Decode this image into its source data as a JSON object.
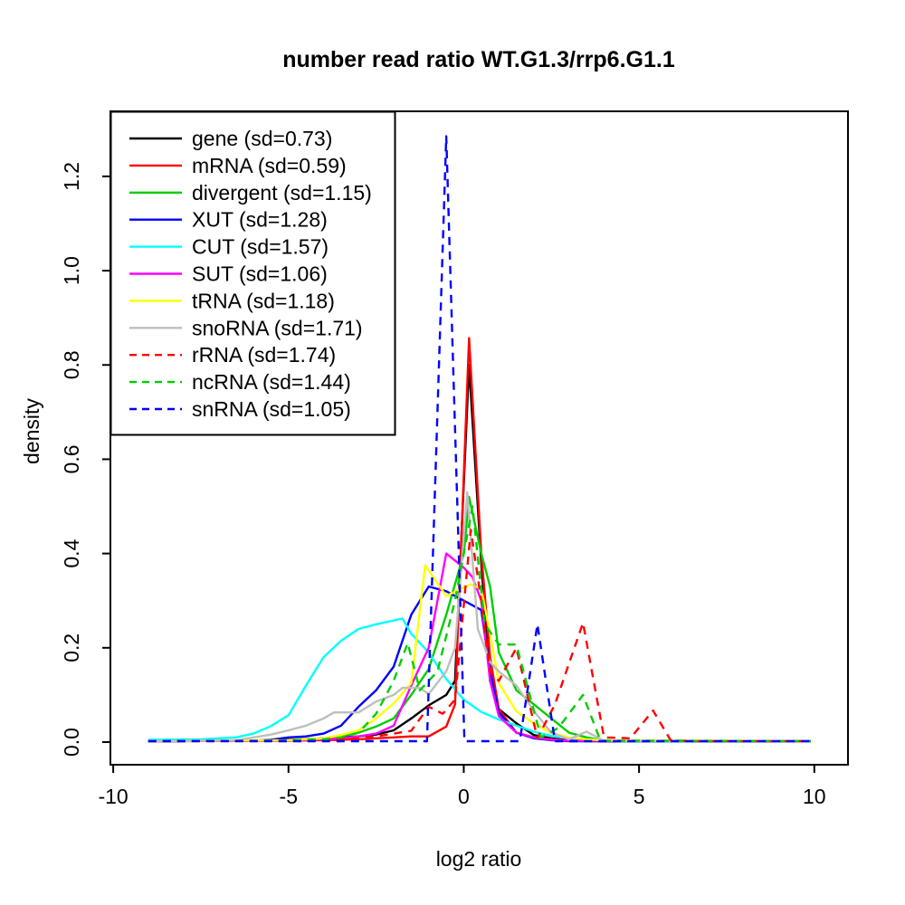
{
  "title": "number read ratio WT.G1.3/rrp6.G1.1",
  "axes": {
    "x_label": "log2 ratio",
    "y_label": "density",
    "x_ticks": [
      "-10",
      "-5",
      "0",
      "5",
      "10"
    ],
    "x_tick_values": [
      -10,
      -5,
      0,
      5,
      10
    ],
    "y_ticks": [
      "0.0",
      "0.2",
      "0.4",
      "0.6",
      "0.8",
      "1.0",
      "1.2"
    ],
    "y_tick_values": [
      0.0,
      0.2,
      0.4,
      0.6,
      0.8,
      1.0,
      1.2
    ]
  },
  "legend": {
    "entries": [
      {
        "label": "gene (sd=0.73)",
        "color": "#000000",
        "dash": false
      },
      {
        "label": "mRNA (sd=0.59)",
        "color": "#FF0000",
        "dash": false
      },
      {
        "label": "divergent (sd=1.15)",
        "color": "#00CD00",
        "dash": false
      },
      {
        "label": "XUT (sd=1.28)",
        "color": "#0000FF",
        "dash": false
      },
      {
        "label": "CUT (sd=1.57)",
        "color": "#00FFFF",
        "dash": false
      },
      {
        "label": "SUT (sd=1.06)",
        "color": "#FF00FF",
        "dash": false
      },
      {
        "label": "tRNA (sd=1.18)",
        "color": "#FFFF00",
        "dash": false
      },
      {
        "label": "snoRNA (sd=1.71)",
        "color": "#BEBEBE",
        "dash": false
      },
      {
        "label": "rRNA (sd=1.74)",
        "color": "#FF0000",
        "dash": true
      },
      {
        "label": "ncRNA (sd=1.44)",
        "color": "#00CD00",
        "dash": true
      },
      {
        "label": "snRNA (sd=1.05)",
        "color": "#0000FF",
        "dash": true
      }
    ]
  },
  "chart_data": {
    "type": "line",
    "title": "number read ratio WT.G1.3/rrp6.G1.1",
    "xlabel": "log2 ratio",
    "ylabel": "density",
    "x_range": [
      -10.08,
      10.96
    ],
    "y_range": [
      -0.048,
      1.338
    ],
    "grid": false,
    "legend_position": "top-left",
    "series": [
      {
        "name": "gene",
        "sd": 0.73,
        "color": "#000000",
        "dash": false,
        "points": [
          [
            -9,
            0.002
          ],
          [
            -6,
            0.003
          ],
          [
            -5,
            0.005
          ],
          [
            -4,
            0.008
          ],
          [
            -3,
            0.012
          ],
          [
            -2.5,
            0.016
          ],
          [
            -2,
            0.025
          ],
          [
            -1.5,
            0.05
          ],
          [
            -1,
            0.078
          ],
          [
            -0.5,
            0.1
          ],
          [
            -0.25,
            0.13
          ],
          [
            0.15,
            0.8
          ],
          [
            0.5,
            0.38
          ],
          [
            0.75,
            0.13
          ],
          [
            1,
            0.07
          ],
          [
            1.5,
            0.04
          ],
          [
            2,
            0.015
          ],
          [
            2.5,
            0.008
          ],
          [
            3,
            0.004
          ],
          [
            4,
            0.002
          ],
          [
            9.9,
            0.002
          ]
        ]
      },
      {
        "name": "mRNA",
        "sd": 0.59,
        "color": "#FF0000",
        "dash": false,
        "points": [
          [
            -9,
            0.002
          ],
          [
            -5,
            0.003
          ],
          [
            -4,
            0.004
          ],
          [
            -3,
            0.006
          ],
          [
            -2.5,
            0.008
          ],
          [
            -2,
            0.01
          ],
          [
            -1.5,
            0.012
          ],
          [
            -1,
            0.012
          ],
          [
            -0.5,
            0.033
          ],
          [
            -0.25,
            0.08
          ],
          [
            0.15,
            0.857
          ],
          [
            0.5,
            0.4
          ],
          [
            0.75,
            0.18
          ],
          [
            1,
            0.07
          ],
          [
            1.5,
            0.02
          ],
          [
            2,
            0.01
          ],
          [
            2.5,
            0.006
          ],
          [
            3,
            0.003
          ],
          [
            4,
            0.002
          ],
          [
            9.9,
            0.002
          ]
        ]
      },
      {
        "name": "divergent",
        "sd": 1.15,
        "color": "#00CD00",
        "dash": false,
        "points": [
          [
            -9,
            0.002
          ],
          [
            -5,
            0.004
          ],
          [
            -4,
            0.008
          ],
          [
            -3.5,
            0.012
          ],
          [
            -3,
            0.02
          ],
          [
            -2.5,
            0.033
          ],
          [
            -2,
            0.05
          ],
          [
            -1.5,
            0.1
          ],
          [
            -1,
            0.155
          ],
          [
            -0.5,
            0.27
          ],
          [
            0,
            0.4
          ],
          [
            0.15,
            0.52
          ],
          [
            0.5,
            0.4
          ],
          [
            0.75,
            0.33
          ],
          [
            1,
            0.19
          ],
          [
            1.5,
            0.11
          ],
          [
            2,
            0.08
          ],
          [
            2.5,
            0.05
          ],
          [
            3,
            0.02
          ],
          [
            3.5,
            0.01
          ],
          [
            4,
            0.003
          ],
          [
            9.9,
            0.002
          ]
        ]
      },
      {
        "name": "XUT",
        "sd": 1.28,
        "color": "#0000FF",
        "dash": false,
        "points": [
          [
            -9,
            0.002
          ],
          [
            -6,
            0.003
          ],
          [
            -5.5,
            0.005
          ],
          [
            -5,
            0.01
          ],
          [
            -4.5,
            0.012
          ],
          [
            -4,
            0.018
          ],
          [
            -3.5,
            0.035
          ],
          [
            -3,
            0.075
          ],
          [
            -2.5,
            0.11
          ],
          [
            -2,
            0.16
          ],
          [
            -1.5,
            0.27
          ],
          [
            -1,
            0.33
          ],
          [
            -0.5,
            0.32
          ],
          [
            0,
            0.3
          ],
          [
            0.5,
            0.28
          ],
          [
            0.75,
            0.15
          ],
          [
            1,
            0.063
          ],
          [
            1.5,
            0.02
          ],
          [
            2,
            0.008
          ],
          [
            2.5,
            0.004
          ],
          [
            3,
            0.002
          ],
          [
            9.9,
            0.002
          ]
        ]
      },
      {
        "name": "CUT",
        "sd": 1.57,
        "color": "#00FFFF",
        "dash": false,
        "points": [
          [
            -9,
            0.005
          ],
          [
            -7.5,
            0.006
          ],
          [
            -7,
            0.008
          ],
          [
            -6.5,
            0.01
          ],
          [
            -6,
            0.018
          ],
          [
            -5.5,
            0.034
          ],
          [
            -5,
            0.057
          ],
          [
            -4.5,
            0.12
          ],
          [
            -4,
            0.18
          ],
          [
            -3.5,
            0.215
          ],
          [
            -3,
            0.24
          ],
          [
            -2.5,
            0.25
          ],
          [
            -1.75,
            0.262
          ],
          [
            -1.5,
            0.23
          ],
          [
            -1,
            0.19
          ],
          [
            -0.5,
            0.134
          ],
          [
            0,
            0.09
          ],
          [
            0.5,
            0.064
          ],
          [
            1,
            0.048
          ],
          [
            1.5,
            0.035
          ],
          [
            2,
            0.022
          ],
          [
            2.5,
            0.013
          ],
          [
            3,
            0.008
          ],
          [
            3.5,
            0.005
          ],
          [
            4,
            0.003
          ],
          [
            4.5,
            0.002
          ],
          [
            9.9,
            0.002
          ]
        ]
      },
      {
        "name": "SUT",
        "sd": 1.06,
        "color": "#FF00FF",
        "dash": false,
        "points": [
          [
            -9,
            0.002
          ],
          [
            -5,
            0.003
          ],
          [
            -4,
            0.006
          ],
          [
            -3.5,
            0.008
          ],
          [
            -3,
            0.012
          ],
          [
            -2.5,
            0.018
          ],
          [
            -2,
            0.035
          ],
          [
            -1.5,
            0.12
          ],
          [
            -1,
            0.2
          ],
          [
            -0.5,
            0.4
          ],
          [
            0,
            0.37
          ],
          [
            0.25,
            0.35
          ],
          [
            0.5,
            0.3
          ],
          [
            0.75,
            0.13
          ],
          [
            1,
            0.055
          ],
          [
            1.5,
            0.02
          ],
          [
            2,
            0.01
          ],
          [
            2.5,
            0.005
          ],
          [
            3,
            0.003
          ],
          [
            9.9,
            0.002
          ]
        ]
      },
      {
        "name": "tRNA",
        "sd": 1.18,
        "color": "#FFFF00",
        "dash": false,
        "points": [
          [
            -9,
            0.002
          ],
          [
            -5,
            0.004
          ],
          [
            -4,
            0.008
          ],
          [
            -3.5,
            0.015
          ],
          [
            -3,
            0.025
          ],
          [
            -2.5,
            0.05
          ],
          [
            -2,
            0.082
          ],
          [
            -1.5,
            0.125
          ],
          [
            -1.1,
            0.375
          ],
          [
            -0.5,
            0.31
          ],
          [
            0.2,
            0.335
          ],
          [
            0.5,
            0.325
          ],
          [
            0.75,
            0.23
          ],
          [
            1,
            0.125
          ],
          [
            1.5,
            0.065
          ],
          [
            2,
            0.04
          ],
          [
            2.5,
            0.02
          ],
          [
            3,
            0.01
          ],
          [
            3.5,
            0.006
          ],
          [
            4,
            0.004
          ],
          [
            9.9,
            0.002
          ]
        ]
      },
      {
        "name": "snoRNA",
        "sd": 1.71,
        "color": "#BEBEBE",
        "dash": false,
        "points": [
          [
            -9,
            0.002
          ],
          [
            -6.5,
            0.004
          ],
          [
            -6,
            0.01
          ],
          [
            -5.5,
            0.016
          ],
          [
            -5,
            0.025
          ],
          [
            -4.5,
            0.035
          ],
          [
            -4,
            0.05
          ],
          [
            -3.7,
            0.063
          ],
          [
            -3,
            0.063
          ],
          [
            -2.5,
            0.086
          ],
          [
            -2,
            0.1
          ],
          [
            -1.75,
            0.115
          ],
          [
            -1.25,
            0.115
          ],
          [
            -1,
            0.102
          ],
          [
            -0.5,
            0.15
          ],
          [
            -0.25,
            0.2
          ],
          [
            0.1,
            0.53
          ],
          [
            0.4,
            0.24
          ],
          [
            0.75,
            0.17
          ],
          [
            1,
            0.15
          ],
          [
            1.5,
            0.12
          ],
          [
            2,
            0.066
          ],
          [
            2.5,
            0.02
          ],
          [
            3,
            0.006
          ],
          [
            3.5,
            0.022
          ],
          [
            4,
            0.003
          ],
          [
            9.9,
            0.002
          ]
        ]
      },
      {
        "name": "rRNA",
        "sd": 1.74,
        "color": "#FF0000",
        "dash": true,
        "points": [
          [
            -9,
            0.002
          ],
          [
            -5,
            0.003
          ],
          [
            -4,
            0.005
          ],
          [
            -3,
            0.008
          ],
          [
            -2.5,
            0.012
          ],
          [
            -2,
            0.018
          ],
          [
            -1.5,
            0.024
          ],
          [
            -1,
            0.075
          ],
          [
            -0.6,
            0.06
          ],
          [
            -0.25,
            0.09
          ],
          [
            0.2,
            0.45
          ],
          [
            0.5,
            0.3
          ],
          [
            0.75,
            0.15
          ],
          [
            1,
            0.13
          ],
          [
            1.5,
            0.2
          ],
          [
            2.1,
            0.008
          ],
          [
            2.6,
            0.08
          ],
          [
            3.4,
            0.253
          ],
          [
            4,
            0.01
          ],
          [
            4.75,
            0.008
          ],
          [
            5.4,
            0.067
          ],
          [
            5.9,
            0.004
          ],
          [
            6.5,
            0.002
          ],
          [
            9.9,
            0.002
          ]
        ]
      },
      {
        "name": "ncRNA",
        "sd": 1.44,
        "color": "#00CD00",
        "dash": true,
        "points": [
          [
            -9,
            0.002
          ],
          [
            -5,
            0.003
          ],
          [
            -4,
            0.006
          ],
          [
            -3.5,
            0.01
          ],
          [
            -3,
            0.02
          ],
          [
            -2.5,
            0.06
          ],
          [
            -2,
            0.13
          ],
          [
            -1.6,
            0.21
          ],
          [
            -1.25,
            0.11
          ],
          [
            -0.75,
            0.15
          ],
          [
            -0.25,
            0.3
          ],
          [
            0.25,
            0.5
          ],
          [
            0.6,
            0.25
          ],
          [
            1,
            0.207
          ],
          [
            1.5,
            0.207
          ],
          [
            2.2,
            0.01
          ],
          [
            2.7,
            0.03
          ],
          [
            3.4,
            0.1
          ],
          [
            3.9,
            0.003
          ],
          [
            9.9,
            0.002
          ]
        ]
      },
      {
        "name": "snRNA",
        "sd": 1.05,
        "color": "#0000FF",
        "dash": true,
        "points": [
          [
            -9,
            0.002
          ],
          [
            -1.05,
            0.002
          ],
          [
            -0.5,
            1.285
          ],
          [
            0.02,
            0.002
          ],
          [
            1.6,
            0.002
          ],
          [
            2.1,
            0.25
          ],
          [
            2.6,
            0.002
          ],
          [
            9.9,
            0.002
          ]
        ]
      }
    ]
  }
}
